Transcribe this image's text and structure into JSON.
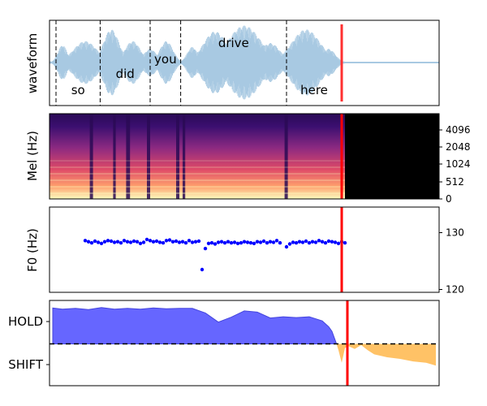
{
  "chart_data": [
    {
      "type": "line",
      "ylabel": "waveform",
      "x_range": [
        0,
        6.0
      ],
      "words": [
        {
          "text": "so",
          "start": 0.1,
          "label_y_pos": "bottom"
        },
        {
          "text": "did",
          "start": 0.78,
          "label_y_pos": "low"
        },
        {
          "text": "you",
          "start": 1.55,
          "label_y_pos": "mid"
        },
        {
          "text": "drive",
          "start": 2.02,
          "label_y_pos": "top"
        },
        {
          "text": "here",
          "start": 3.65,
          "label_y_pos": "bottom"
        }
      ],
      "word_boundaries": [
        0.1,
        0.78,
        1.55,
        2.02,
        3.65
      ],
      "cursor": 4.5,
      "colors": {
        "wave": "#a8c9e2",
        "cursor": "#ff3030",
        "boundary": "#000000"
      }
    },
    {
      "type": "heatmap",
      "ylabel": "Mel (Hz)",
      "yticks": [
        "0",
        "512",
        "1024",
        "2048",
        "4096"
      ],
      "x_range": [
        0,
        6.0
      ],
      "cursor": 4.5,
      "colors": {
        "cursor": "#ff0000",
        "silence": "#000000"
      }
    },
    {
      "type": "scatter",
      "ylabel": "F0 (Hz)",
      "yticks": [
        120,
        130
      ],
      "ylim": [
        119.5,
        134.5
      ],
      "x_range": [
        0,
        6.0
      ],
      "cursor": 4.5,
      "series": [
        {
          "x": [
            0.55,
            0.6,
            0.65,
            0.7,
            0.75,
            0.8,
            0.85,
            0.9,
            0.95,
            1.0,
            1.05,
            1.1,
            1.15,
            1.2,
            1.25,
            1.3,
            1.35,
            1.4,
            1.45,
            1.5,
            1.55,
            1.6,
            1.65,
            1.7,
            1.75,
            1.8,
            1.85,
            1.9,
            1.95,
            2.0,
            2.05,
            2.1,
            2.15,
            2.2,
            2.25,
            2.3,
            2.35,
            2.4,
            2.45,
            2.5,
            2.55,
            2.6,
            2.65,
            2.7,
            2.75,
            2.8,
            2.85,
            2.9,
            2.95,
            3.0,
            3.05,
            3.1,
            3.15,
            3.2,
            3.25,
            3.3,
            3.35,
            3.4,
            3.45,
            3.5,
            3.55,
            3.65,
            3.7,
            3.75,
            3.8,
            3.85,
            3.9,
            3.95,
            4.0,
            4.05,
            4.1,
            4.15,
            4.2,
            4.25,
            4.3,
            4.35,
            4.4,
            4.45,
            4.5,
            4.55
          ],
          "y": [
            128.6,
            128.4,
            128.2,
            128.5,
            128.3,
            128.1,
            128.4,
            128.6,
            128.5,
            128.3,
            128.4,
            128.2,
            128.6,
            128.4,
            128.3,
            128.5,
            128.4,
            128.1,
            128.3,
            128.8,
            128.6,
            128.4,
            128.5,
            128.3,
            128.2,
            128.6,
            128.7,
            128.4,
            128.5,
            128.3,
            128.4,
            128.2,
            128.6,
            128.3,
            128.4,
            128.5,
            123.5,
            127.2,
            128.1,
            128.2,
            128.0,
            128.3,
            128.4,
            128.2,
            128.4,
            128.2,
            128.3,
            128.1,
            128.2,
            128.4,
            128.3,
            128.2,
            128.1,
            128.4,
            128.3,
            128.5,
            128.2,
            128.4,
            128.3,
            128.6,
            128.2,
            127.5,
            128.0,
            128.3,
            128.2,
            128.4,
            128.3,
            128.5,
            128.2,
            128.4,
            128.3,
            128.6,
            128.4,
            128.2,
            128.5,
            128.4,
            128.3,
            128.1,
            128.4,
            128.2
          ],
          "color": "#0000ff"
        }
      ]
    },
    {
      "type": "area",
      "yticks": [
        "HOLD",
        "SHIFT"
      ],
      "ylim": [
        -1.0,
        1.0
      ],
      "x_range": [
        0,
        6.0
      ],
      "cursor": 4.5,
      "threshold": 0,
      "series": [
        {
          "x": [
            0.05,
            0.2,
            0.4,
            0.6,
            0.8,
            1.0,
            1.2,
            1.4,
            1.6,
            1.8,
            2.0,
            2.2,
            2.4,
            2.6,
            2.8,
            3.0,
            3.2,
            3.4,
            3.6,
            3.8,
            4.0,
            4.2,
            4.3,
            4.35,
            4.42
          ],
          "y": [
            0.86,
            0.83,
            0.85,
            0.82,
            0.87,
            0.83,
            0.85,
            0.83,
            0.86,
            0.84,
            0.85,
            0.85,
            0.74,
            0.52,
            0.64,
            0.79,
            0.76,
            0.62,
            0.65,
            0.63,
            0.65,
            0.55,
            0.41,
            0.3,
            0.0
          ],
          "color": "#6666ff"
        },
        {
          "x": [
            4.42,
            4.45,
            4.5,
            4.55,
            4.6,
            4.7,
            4.8,
            4.9,
            5.0,
            5.2,
            5.4,
            5.6,
            5.8,
            5.95
          ],
          "y": [
            0.0,
            -0.15,
            -0.45,
            -0.1,
            -0.05,
            -0.12,
            -0.03,
            -0.15,
            -0.25,
            -0.32,
            -0.36,
            -0.42,
            -0.45,
            -0.52
          ],
          "color": "#ffc266"
        }
      ]
    }
  ]
}
